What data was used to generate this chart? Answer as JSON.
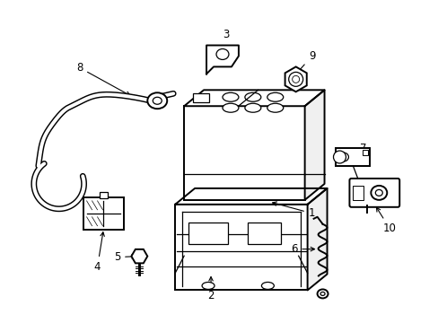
{
  "background_color": "#ffffff",
  "line_color": "#000000",
  "line_width": 1.4,
  "label_fontsize": 8.5,
  "figsize": [
    4.89,
    3.6
  ],
  "dpi": 100
}
